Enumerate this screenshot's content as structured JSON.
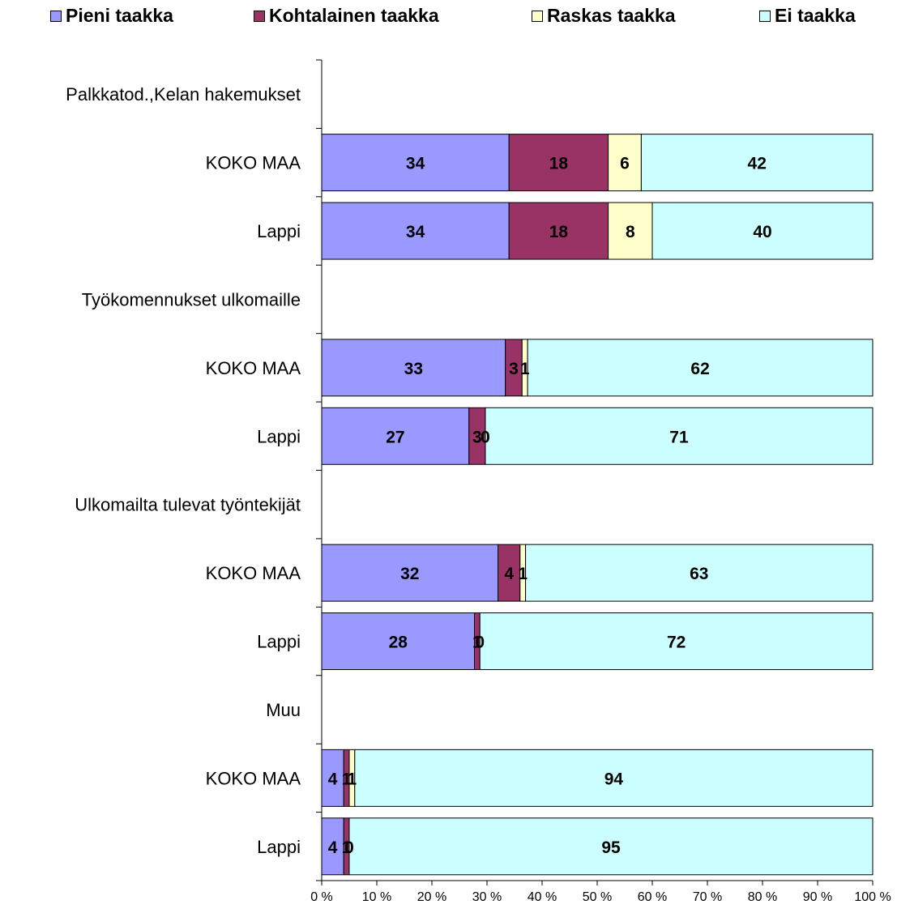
{
  "chart_data": {
    "type": "bar",
    "orientation": "horizontal",
    "stacked": "percent",
    "legend_position": "top",
    "grid": false,
    "xlim": [
      0,
      100
    ],
    "x_ticks": [
      "0 %",
      "10 %",
      "20 %",
      "30 %",
      "40 %",
      "50 %",
      "60 %",
      "70 %",
      "80 %",
      "90 %",
      "100 %"
    ],
    "rows": [
      {
        "label": "Palkkatod.,Kelan hakemukset",
        "group_header": true,
        "values": null
      },
      {
        "label": "KOKO MAA",
        "values": [
          34,
          18,
          6,
          42
        ]
      },
      {
        "label": "Lappi",
        "values": [
          34,
          18,
          8,
          40
        ]
      },
      {
        "label": "Työkomennukset ulkomaille",
        "group_header": true,
        "values": null
      },
      {
        "label": "KOKO MAA",
        "values": [
          33,
          3,
          1,
          62
        ]
      },
      {
        "label": "Lappi",
        "values": [
          27,
          3,
          0,
          71
        ]
      },
      {
        "label": "Ulkomailta tulevat työntekijät",
        "group_header": true,
        "values": null
      },
      {
        "label": "KOKO MAA",
        "values": [
          32,
          4,
          1,
          63
        ]
      },
      {
        "label": "Lappi",
        "values": [
          28,
          1,
          0,
          72
        ]
      },
      {
        "label": "Muu",
        "group_header": true,
        "values": null
      },
      {
        "label": "KOKO MAA",
        "values": [
          4,
          1,
          1,
          94
        ]
      },
      {
        "label": "Lappi",
        "values": [
          4,
          1,
          0,
          95
        ]
      }
    ],
    "series": [
      {
        "name": "Pieni taakka",
        "color": "#9999ff"
      },
      {
        "name": "Kohtalainen taakka",
        "color": "#993366"
      },
      {
        "name": "Raskas taakka",
        "color": "#ffffcc"
      },
      {
        "name": "Ei taakka",
        "color": "#ccffff"
      }
    ]
  }
}
